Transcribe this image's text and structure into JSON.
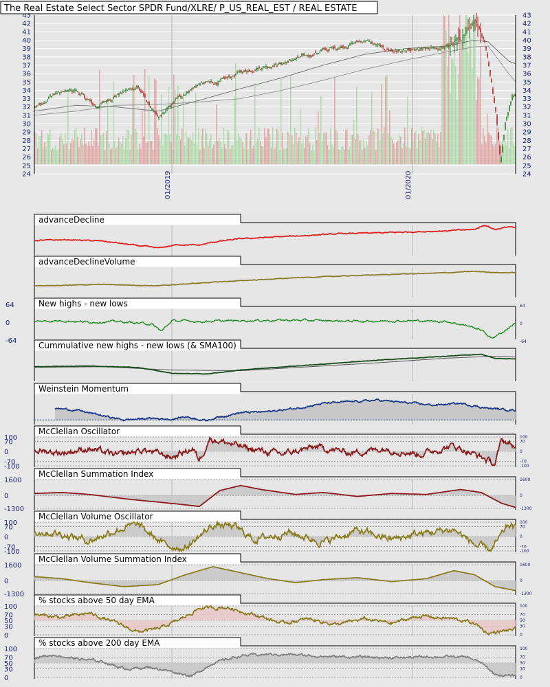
{
  "title": "The Real Estate Select Sector SPDR Fund/XLRE/ P_US_REAL_EST / REAL ESTATE",
  "colors": {
    "background": "#e8e8e8",
    "plot_bg": "#e6e6e6",
    "grid": "#ffffff",
    "axis_text": "#1a237e",
    "up_candle": "#1e7d1e",
    "down_candle": "#b01e1e",
    "vol_up": "#a9d8a3",
    "vol_down": "#e0a0a0",
    "ma_line": "#777777",
    "advance_decline": "#e02020",
    "ad_volume": "#8b7d2b",
    "new_highs_lows": "#1e8c1e",
    "cumulative": "#1a4d1a",
    "weinstein": "#1a3a8a",
    "mcclellan": "#8b1a1a",
    "mcclellan_volume": "#8b7d1e",
    "pct50": "#8b7a1e",
    "pct200": "#808080",
    "fill_gray": "#c8c8c8",
    "fill_pink": "#e8c8c8"
  },
  "chart_data": [
    {
      "type": "candlestick",
      "name": "price",
      "ylim": [
        24,
        43
      ],
      "y_ticks": [
        43,
        42,
        41,
        40,
        39,
        38,
        37,
        36,
        35,
        34,
        33,
        32,
        31,
        30,
        29,
        28,
        27,
        26,
        25,
        24
      ],
      "x_labels": [
        "01/2019",
        "01/2020"
      ],
      "keypoints": [
        [
          0,
          32.0
        ],
        [
          30,
          33.6
        ],
        [
          60,
          34.0
        ],
        [
          90,
          32.0
        ],
        [
          120,
          33.5
        ],
        [
          150,
          34.5
        ],
        [
          180,
          30.5
        ],
        [
          210,
          33.2
        ],
        [
          240,
          34.8
        ],
        [
          270,
          35.0
        ],
        [
          300,
          36.2
        ],
        [
          330,
          36.8
        ],
        [
          360,
          37.2
        ],
        [
          390,
          38.0
        ],
        [
          420,
          38.8
        ],
        [
          450,
          39.3
        ],
        [
          480,
          40.0
        ],
        [
          510,
          38.9
        ],
        [
          540,
          38.6
        ],
        [
          570,
          38.9
        ],
        [
          600,
          39.2
        ],
        [
          620,
          40.2
        ],
        [
          640,
          42.2
        ],
        [
          655,
          40.0
        ],
        [
          665,
          35.0
        ],
        [
          672,
          31.0
        ],
        [
          678,
          25.5
        ],
        [
          685,
          30.0
        ],
        [
          695,
          33.5
        ],
        [
          705,
          33.8
        ],
        [
          715,
          33.0
        ],
        [
          725,
          31.5
        ],
        [
          735,
          32.2
        ],
        [
          745,
          36.0
        ],
        [
          750,
          36.8
        ]
      ],
      "ma1_keypoints": [
        [
          0,
          31.5
        ],
        [
          60,
          32.2
        ],
        [
          120,
          32.0
        ],
        [
          180,
          31.5
        ],
        [
          240,
          32.8
        ],
        [
          300,
          34.2
        ],
        [
          360,
          35.5
        ],
        [
          420,
          37.0
        ],
        [
          480,
          38.3
        ],
        [
          540,
          39.0
        ],
        [
          600,
          39.3
        ],
        [
          640,
          40.0
        ],
        [
          660,
          39.8
        ],
        [
          690,
          37.5
        ],
        [
          720,
          36.5
        ],
        [
          750,
          36.0
        ]
      ],
      "ma2_keypoints": [
        [
          0,
          31.0
        ],
        [
          60,
          31.5
        ],
        [
          120,
          32.2
        ],
        [
          180,
          32.3
        ],
        [
          240,
          32.6
        ],
        [
          300,
          33.0
        ],
        [
          360,
          34.0
        ],
        [
          420,
          35.2
        ],
        [
          480,
          36.5
        ],
        [
          540,
          37.6
        ],
        [
          600,
          38.6
        ],
        [
          640,
          39.2
        ],
        [
          660,
          39.3
        ],
        [
          690,
          36.0
        ],
        [
          720,
          33.0
        ],
        [
          750,
          33.5
        ]
      ]
    },
    {
      "type": "line",
      "name": "advanceDecline",
      "title": "advanceDecline",
      "keypoints": [
        [
          0,
          40
        ],
        [
          50,
          42
        ],
        [
          100,
          38
        ],
        [
          150,
          25
        ],
        [
          180,
          18
        ],
        [
          210,
          28
        ],
        [
          240,
          26
        ],
        [
          260,
          35
        ],
        [
          300,
          45
        ],
        [
          350,
          50
        ],
        [
          400,
          55
        ],
        [
          450,
          60
        ],
        [
          500,
          62
        ],
        [
          550,
          65
        ],
        [
          600,
          68
        ],
        [
          640,
          72
        ],
        [
          655,
          85
        ],
        [
          670,
          72
        ],
        [
          690,
          80
        ],
        [
          710,
          72
        ],
        [
          730,
          80
        ],
        [
          750,
          88
        ]
      ],
      "ylim": [
        0,
        100
      ]
    },
    {
      "type": "line",
      "name": "advanceDeclineVolume",
      "title": "advanceDeclineVolume",
      "keypoints": [
        [
          0,
          30
        ],
        [
          100,
          34
        ],
        [
          180,
          30
        ],
        [
          240,
          38
        ],
        [
          300,
          45
        ],
        [
          400,
          55
        ],
        [
          500,
          62
        ],
        [
          600,
          68
        ],
        [
          640,
          72
        ],
        [
          680,
          68
        ],
        [
          750,
          70
        ]
      ],
      "ylim": [
        0,
        100
      ]
    },
    {
      "type": "line",
      "name": "newHighsLows",
      "title": "New highs - new lows",
      "y_ticks": [
        64,
        0,
        -64
      ],
      "ylim": [
        -64,
        64
      ],
      "keypoints": [
        [
          0,
          5
        ],
        [
          40,
          8
        ],
        [
          80,
          3
        ],
        [
          120,
          5
        ],
        [
          170,
          -4
        ],
        [
          185,
          -30
        ],
        [
          200,
          8
        ],
        [
          240,
          5
        ],
        [
          300,
          8
        ],
        [
          360,
          10
        ],
        [
          420,
          8
        ],
        [
          480,
          6
        ],
        [
          540,
          8
        ],
        [
          600,
          5
        ],
        [
          630,
          -10
        ],
        [
          650,
          -25
        ],
        [
          665,
          -55
        ],
        [
          680,
          -35
        ],
        [
          700,
          0
        ],
        [
          750,
          0
        ]
      ],
      "noise": 5
    },
    {
      "type": "line",
      "name": "cumulativeNewHighsLows",
      "title": "Cummulative new highs - new lows (& SMA100)",
      "ylim": [
        0,
        100
      ],
      "keypoints": [
        [
          0,
          40
        ],
        [
          80,
          42
        ],
        [
          150,
          38
        ],
        [
          200,
          20
        ],
        [
          250,
          18
        ],
        [
          300,
          30
        ],
        [
          400,
          45
        ],
        [
          500,
          60
        ],
        [
          600,
          72
        ],
        [
          650,
          78
        ],
        [
          670,
          65
        ],
        [
          750,
          62
        ]
      ],
      "sma_keypoints": [
        [
          0,
          38
        ],
        [
          100,
          40
        ],
        [
          200,
          30
        ],
        [
          300,
          28
        ],
        [
          400,
          40
        ],
        [
          500,
          52
        ],
        [
          600,
          66
        ],
        [
          670,
          72
        ],
        [
          750,
          66
        ]
      ]
    },
    {
      "type": "area",
      "name": "weinsteinMomentum",
      "title": "Weinstein Momentum",
      "ylim": [
        0,
        100
      ],
      "baseline": 10,
      "keypoints": [
        [
          30,
          45
        ],
        [
          60,
          40
        ],
        [
          110,
          18
        ],
        [
          130,
          10
        ],
        [
          170,
          15
        ],
        [
          200,
          12
        ],
        [
          220,
          20
        ],
        [
          250,
          8
        ],
        [
          270,
          20
        ],
        [
          300,
          32
        ],
        [
          340,
          35
        ],
        [
          380,
          45
        ],
        [
          420,
          60
        ],
        [
          460,
          65
        ],
        [
          500,
          70
        ],
        [
          540,
          62
        ],
        [
          580,
          55
        ],
        [
          620,
          60
        ],
        [
          660,
          45
        ],
        [
          680,
          42
        ],
        [
          700,
          40
        ],
        [
          730,
          35
        ],
        [
          750,
          38
        ]
      ],
      "noise": 4
    },
    {
      "type": "oscillator",
      "name": "mcclellanOscillator",
      "title": "McClellan Oscillator",
      "y_ticks": [
        100,
        70,
        0,
        -70,
        -100
      ],
      "ylim": [
        -100,
        100
      ],
      "keypoints": [
        [
          0,
          10
        ],
        [
          40,
          -10
        ],
        [
          80,
          20
        ],
        [
          120,
          -30
        ],
        [
          160,
          10
        ],
        [
          200,
          -40
        ],
        [
          230,
          20
        ],
        [
          240,
          -60
        ],
        [
          255,
          90
        ],
        [
          280,
          60
        ],
        [
          310,
          20
        ],
        [
          360,
          -20
        ],
        [
          410,
          30
        ],
        [
          460,
          -10
        ],
        [
          510,
          20
        ],
        [
          560,
          -20
        ],
        [
          610,
          40
        ],
        [
          650,
          -40
        ],
        [
          670,
          -90
        ],
        [
          680,
          80
        ],
        [
          700,
          30
        ],
        [
          720,
          40
        ],
        [
          750,
          60
        ]
      ],
      "noise": 30
    },
    {
      "type": "oscillator",
      "name": "mcclellanSummation",
      "title": "McClellan Summation Index",
      "y_ticks": [
        1600,
        0,
        -1300
      ],
      "ylim": [
        -1300,
        1600
      ],
      "keypoints": [
        [
          0,
          200
        ],
        [
          40,
          300
        ],
        [
          80,
          100
        ],
        [
          140,
          -400
        ],
        [
          200,
          -800
        ],
        [
          240,
          -1100
        ],
        [
          270,
          500
        ],
        [
          300,
          1000
        ],
        [
          330,
          600
        ],
        [
          380,
          100
        ],
        [
          420,
          300
        ],
        [
          470,
          -100
        ],
        [
          520,
          200
        ],
        [
          570,
          100
        ],
        [
          620,
          600
        ],
        [
          650,
          300
        ],
        [
          680,
          -800
        ],
        [
          700,
          -1200
        ],
        [
          730,
          -900
        ],
        [
          750,
          -100
        ]
      ]
    },
    {
      "type": "oscillator",
      "name": "mcclellanVolumeOscillator",
      "title": "McClellan Volume Oscillator",
      "y_ticks": [
        100,
        70,
        0,
        -70,
        -100
      ],
      "ylim": [
        -100,
        100
      ],
      "keypoints": [
        [
          0,
          40
        ],
        [
          40,
          20
        ],
        [
          80,
          -30
        ],
        [
          120,
          50
        ],
        [
          150,
          80
        ],
        [
          190,
          -60
        ],
        [
          220,
          -80
        ],
        [
          260,
          80
        ],
        [
          290,
          70
        ],
        [
          320,
          -20
        ],
        [
          370,
          30
        ],
        [
          420,
          -40
        ],
        [
          470,
          40
        ],
        [
          520,
          -20
        ],
        [
          560,
          20
        ],
        [
          610,
          50
        ],
        [
          645,
          -70
        ],
        [
          665,
          -95
        ],
        [
          690,
          80
        ],
        [
          710,
          20
        ],
        [
          730,
          -20
        ],
        [
          750,
          90
        ]
      ],
      "noise": 35
    },
    {
      "type": "oscillator",
      "name": "mcclellanVolumeSummation",
      "title": "McClellan Volume Summation Index",
      "y_ticks": [
        1600,
        0,
        -1300
      ],
      "ylim": [
        -1300,
        1600
      ],
      "keypoints": [
        [
          0,
          400
        ],
        [
          40,
          200
        ],
        [
          80,
          -200
        ],
        [
          130,
          -600
        ],
        [
          180,
          -400
        ],
        [
          220,
          600
        ],
        [
          260,
          1400
        ],
        [
          300,
          800
        ],
        [
          340,
          200
        ],
        [
          380,
          -200
        ],
        [
          420,
          100
        ],
        [
          470,
          300
        ],
        [
          520,
          -100
        ],
        [
          570,
          200
        ],
        [
          610,
          1000
        ],
        [
          640,
          600
        ],
        [
          670,
          -600
        ],
        [
          700,
          -1000
        ],
        [
          730,
          -800
        ],
        [
          750,
          -200
        ]
      ]
    },
    {
      "type": "area",
      "name": "pctAbove50EMA",
      "title": "% stocks above 50 day EMA",
      "y_ticks": [
        100,
        70,
        50,
        30,
        0
      ],
      "ylim": [
        0,
        100
      ],
      "keypoints": [
        [
          0,
          70
        ],
        [
          40,
          60
        ],
        [
          80,
          75
        ],
        [
          120,
          40
        ],
        [
          150,
          10
        ],
        [
          180,
          20
        ],
        [
          210,
          50
        ],
        [
          240,
          92
        ],
        [
          280,
          95
        ],
        [
          320,
          70
        ],
        [
          360,
          40
        ],
        [
          400,
          55
        ],
        [
          440,
          35
        ],
        [
          480,
          55
        ],
        [
          520,
          40
        ],
        [
          560,
          65
        ],
        [
          610,
          55
        ],
        [
          640,
          40
        ],
        [
          660,
          5
        ],
        [
          690,
          15
        ],
        [
          720,
          30
        ],
        [
          745,
          60
        ],
        [
          750,
          90
        ]
      ],
      "noise": 8
    },
    {
      "type": "area",
      "name": "pctAbove200EMA",
      "title": "% stocks above 200 day EMA",
      "y_ticks": [
        100,
        70,
        50,
        30,
        0
      ],
      "ylim": [
        0,
        100
      ],
      "keypoints": [
        [
          0,
          70
        ],
        [
          30,
          78
        ],
        [
          60,
          65
        ],
        [
          100,
          55
        ],
        [
          130,
          30
        ],
        [
          170,
          35
        ],
        [
          200,
          20
        ],
        [
          230,
          5
        ],
        [
          260,
          50
        ],
        [
          300,
          75
        ],
        [
          340,
          80
        ],
        [
          380,
          78
        ],
        [
          430,
          72
        ],
        [
          480,
          70
        ],
        [
          530,
          68
        ],
        [
          580,
          72
        ],
        [
          630,
          70
        ],
        [
          650,
          50
        ],
        [
          670,
          10
        ],
        [
          690,
          5
        ],
        [
          720,
          10
        ],
        [
          740,
          25
        ],
        [
          750,
          35
        ]
      ],
      "noise": 6
    }
  ]
}
